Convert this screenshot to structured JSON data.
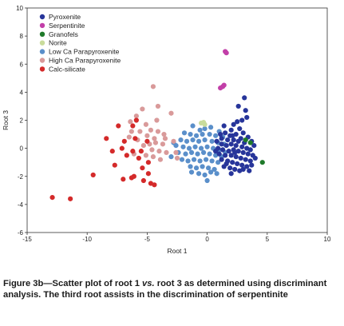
{
  "caption": {
    "prefix": "Figure 3b—Scatter plot of root 1 ",
    "vs": "vs.",
    "suffix": " root 3 as determined using discriminant analysis. The third root assists in the discrimination of serpentinite"
  },
  "chart_data": {
    "type": "scatter",
    "title": "",
    "xlabel": "Root 1",
    "ylabel": "Root 3",
    "xlim": [
      -15,
      10
    ],
    "ylim": [
      -6,
      10
    ],
    "xticks": [
      -15,
      -10,
      -5,
      0,
      5,
      10
    ],
    "yticks": [
      -6,
      -4,
      -2,
      0,
      2,
      4,
      6,
      8,
      10
    ],
    "grid": false,
    "legend_position": "top-left",
    "series": [
      {
        "name": "Pyroxenite",
        "color": "#27359a",
        "points": [
          [
            3.1,
            3.6
          ],
          [
            2.6,
            3.0
          ],
          [
            3.2,
            2.7
          ],
          [
            3.3,
            2.2
          ],
          [
            2.9,
            2.0
          ],
          [
            2.5,
            1.9
          ],
          [
            2.2,
            1.7
          ],
          [
            1.4,
            1.6
          ],
          [
            2.0,
            1.3
          ],
          [
            2.7,
            1.4
          ],
          [
            3.0,
            1.1
          ],
          [
            1.5,
            1.1
          ],
          [
            2.4,
            1.0
          ],
          [
            1.9,
            0.9
          ],
          [
            3.4,
            0.8
          ],
          [
            3.7,
            0.5
          ],
          [
            1.7,
            0.6
          ],
          [
            2.2,
            0.6
          ],
          [
            2.8,
            0.7
          ],
          [
            3.1,
            0.4
          ],
          [
            0.8,
            0.5
          ],
          [
            1.2,
            0.3
          ],
          [
            1.6,
            0.2
          ],
          [
            2.0,
            0.3
          ],
          [
            2.4,
            0.2
          ],
          [
            2.9,
            0.1
          ],
          [
            3.3,
            0.0
          ],
          [
            3.6,
            -0.1
          ],
          [
            0.9,
            0.0
          ],
          [
            1.3,
            -0.1
          ],
          [
            1.8,
            -0.2
          ],
          [
            2.2,
            -0.1
          ],
          [
            2.6,
            -0.2
          ],
          [
            3.0,
            -0.3
          ],
          [
            3.4,
            -0.4
          ],
          [
            3.8,
            -0.5
          ],
          [
            1.0,
            -0.4
          ],
          [
            1.5,
            -0.5
          ],
          [
            2.0,
            -0.5
          ],
          [
            2.4,
            -0.6
          ],
          [
            2.8,
            -0.7
          ],
          [
            3.2,
            -0.8
          ],
          [
            3.6,
            -0.9
          ],
          [
            1.2,
            -0.8
          ],
          [
            1.7,
            -0.9
          ],
          [
            2.1,
            -1.0
          ],
          [
            2.5,
            -1.1
          ],
          [
            2.9,
            -1.2
          ],
          [
            3.3,
            -1.3
          ],
          [
            1.9,
            -1.4
          ],
          [
            2.3,
            -1.5
          ],
          [
            2.7,
            -1.6
          ],
          [
            3.0,
            -1.5
          ],
          [
            1.6,
            -1.1
          ],
          [
            3.9,
            0.2
          ],
          [
            2.1,
            0.9
          ],
          [
            1.1,
            1.0
          ],
          [
            0.7,
            -0.2
          ],
          [
            2.6,
            0.5
          ],
          [
            3.5,
            -1.6
          ],
          [
            2.0,
            -1.8
          ],
          [
            1.4,
            -1.3
          ],
          [
            3.7,
            -1.2
          ],
          [
            2.3,
            -0.3
          ],
          [
            1.2,
            0.7
          ],
          [
            4.0,
            -0.7
          ]
        ]
      },
      {
        "name": "Serpentinite",
        "color": "#c23fa8",
        "points": [
          [
            1.5,
            6.9
          ],
          [
            1.6,
            6.8
          ],
          [
            1.3,
            4.4
          ],
          [
            1.1,
            4.3
          ],
          [
            1.4,
            4.5
          ]
        ]
      },
      {
        "name": "Granofels",
        "color": "#1f7a2a",
        "points": [
          [
            3.2,
            0.6
          ],
          [
            3.6,
            0.4
          ],
          [
            4.6,
            -1.0
          ]
        ]
      },
      {
        "name": "Norite",
        "color": "#c9dc9c",
        "points": [
          [
            -0.5,
            1.8
          ],
          [
            -0.2,
            1.7
          ],
          [
            -0.3,
            1.85
          ]
        ]
      },
      {
        "name": "Low Ca Parapyroxenite",
        "color": "#5a8fca",
        "points": [
          [
            -1.2,
            1.6
          ],
          [
            -0.6,
            1.3
          ],
          [
            0.3,
            1.5
          ],
          [
            1.0,
            1.2
          ],
          [
            -1.4,
            1.0
          ],
          [
            -0.9,
            0.9
          ],
          [
            -0.4,
            1.0
          ],
          [
            0.2,
            1.0
          ],
          [
            0.7,
            0.9
          ],
          [
            1.3,
            0.8
          ],
          [
            -2.2,
            0.6
          ],
          [
            -1.7,
            0.5
          ],
          [
            -1.2,
            0.6
          ],
          [
            -0.7,
            0.5
          ],
          [
            -0.2,
            0.6
          ],
          [
            0.4,
            0.5
          ],
          [
            0.9,
            0.4
          ],
          [
            1.4,
            0.3
          ],
          [
            -2.6,
            0.2
          ],
          [
            -2.0,
            0.1
          ],
          [
            -1.5,
            0.0
          ],
          [
            -1.0,
            0.1
          ],
          [
            -0.5,
            0.0
          ],
          [
            0.0,
            0.1
          ],
          [
            0.5,
            0.0
          ],
          [
            1.0,
            -0.1
          ],
          [
            -2.4,
            -0.3
          ],
          [
            -1.8,
            -0.4
          ],
          [
            -1.3,
            -0.3
          ],
          [
            -0.8,
            -0.4
          ],
          [
            -0.3,
            -0.3
          ],
          [
            0.2,
            -0.4
          ],
          [
            0.7,
            -0.5
          ],
          [
            1.2,
            -0.6
          ],
          [
            -2.1,
            -0.8
          ],
          [
            -1.6,
            -0.9
          ],
          [
            -1.1,
            -0.8
          ],
          [
            -0.6,
            -0.9
          ],
          [
            -0.1,
            -0.8
          ],
          [
            0.4,
            -0.9
          ],
          [
            0.9,
            -1.0
          ],
          [
            -1.4,
            -1.3
          ],
          [
            -0.9,
            -1.4
          ],
          [
            -0.4,
            -1.3
          ],
          [
            0.1,
            -1.4
          ],
          [
            0.6,
            -1.5
          ],
          [
            -0.7,
            -1.8
          ],
          [
            -0.2,
            -1.9
          ],
          [
            0.3,
            -1.7
          ],
          [
            0.0,
            -2.3
          ],
          [
            -3.0,
            -0.6
          ],
          [
            -2.8,
            0.4
          ],
          [
            -1.9,
            1.1
          ],
          [
            1.5,
            -0.3
          ],
          [
            -0.2,
            1.4
          ],
          [
            0.8,
            -1.8
          ],
          [
            -1.3,
            -1.7
          ]
        ]
      },
      {
        "name": "High Ca Parapyroxenite",
        "color": "#d99a9a",
        "points": [
          [
            -4.5,
            4.4
          ],
          [
            -4.1,
            3.0
          ],
          [
            -5.4,
            2.8
          ],
          [
            -3.0,
            2.5
          ],
          [
            -5.9,
            2.3
          ],
          [
            -6.4,
            1.9
          ],
          [
            -4.2,
            2.0
          ],
          [
            -5.1,
            1.7
          ],
          [
            -6.3,
            1.2
          ],
          [
            -4.7,
            1.3
          ],
          [
            -5.6,
            1.2
          ],
          [
            -4.1,
            1.2
          ],
          [
            -3.6,
            1.0
          ],
          [
            -5.0,
            0.9
          ],
          [
            -4.4,
            0.7
          ],
          [
            -5.8,
            0.6
          ],
          [
            -6.5,
            0.8
          ],
          [
            -4.8,
            0.3
          ],
          [
            -4.3,
            0.4
          ],
          [
            -3.7,
            0.3
          ],
          [
            -5.3,
            0.2
          ],
          [
            -2.8,
            0.5
          ],
          [
            -4.6,
            -0.1
          ],
          [
            -4.0,
            -0.2
          ],
          [
            -3.4,
            -0.3
          ],
          [
            -2.6,
            -0.3
          ],
          [
            -5.1,
            -0.5
          ],
          [
            -4.5,
            -0.6
          ],
          [
            -3.9,
            -0.8
          ],
          [
            -2.5,
            -0.7
          ],
          [
            -6.1,
            -0.4
          ],
          [
            -3.5,
            0.7
          ]
        ]
      },
      {
        "name": "Calc-silicate",
        "color": "#d42a2a",
        "points": [
          [
            -5.9,
            2.0
          ],
          [
            -6.2,
            1.6
          ],
          [
            -7.4,
            1.6
          ],
          [
            -8.4,
            0.7
          ],
          [
            -6.0,
            0.7
          ],
          [
            -6.9,
            0.5
          ],
          [
            -5.0,
            0.5
          ],
          [
            -7.1,
            0.0
          ],
          [
            -6.2,
            -0.2
          ],
          [
            -5.5,
            -0.2
          ],
          [
            -7.9,
            -0.2
          ],
          [
            -6.7,
            -0.5
          ],
          [
            -5.7,
            -0.7
          ],
          [
            -4.9,
            -1.0
          ],
          [
            -7.7,
            -1.2
          ],
          [
            -5.4,
            -1.4
          ],
          [
            -4.9,
            -1.8
          ],
          [
            -6.1,
            -2.0
          ],
          [
            -6.3,
            -2.1
          ],
          [
            -9.5,
            -1.9
          ],
          [
            -7.0,
            -2.2
          ],
          [
            -5.3,
            -2.3
          ],
          [
            -4.7,
            -2.5
          ],
          [
            -4.4,
            -2.6
          ],
          [
            -12.9,
            -3.5
          ],
          [
            -11.4,
            -3.6
          ]
        ]
      }
    ]
  }
}
